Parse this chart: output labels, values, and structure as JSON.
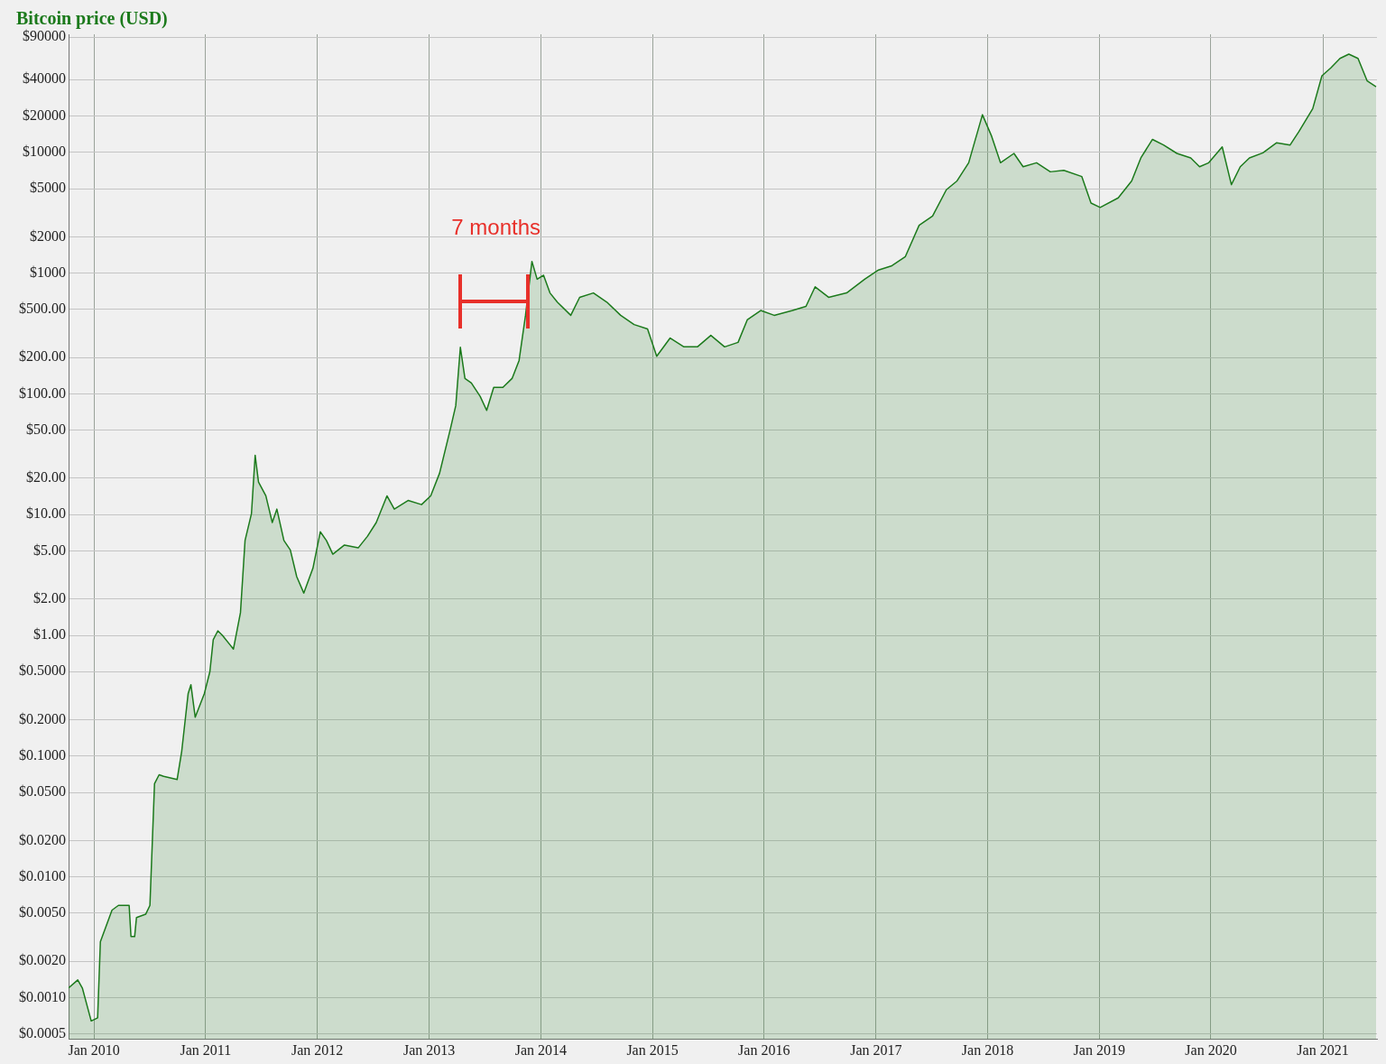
{
  "chart_data": {
    "type": "area",
    "title": "Bitcoin price (USD)",
    "log": "y",
    "grid": true,
    "legend": false,
    "marker": "none",
    "line_style": "solid",
    "xlim": [
      "2009-10-10",
      "2021-06-27"
    ],
    "xticks": [
      {
        "value": "2010-01-01",
        "label": "Jan 2010"
      },
      {
        "value": "2011-01-01",
        "label": "Jan 2011"
      },
      {
        "value": "2012-01-01",
        "label": "Jan 2012"
      },
      {
        "value": "2013-01-01",
        "label": "Jan 2013"
      },
      {
        "value": "2014-01-01",
        "label": "Jan 2014"
      },
      {
        "value": "2015-01-01",
        "label": "Jan 2015"
      },
      {
        "value": "2016-01-01",
        "label": "Jan 2016"
      },
      {
        "value": "2017-01-01",
        "label": "Jan 2017"
      },
      {
        "value": "2018-01-01",
        "label": "Jan 2018"
      },
      {
        "value": "2019-01-01",
        "label": "Jan 2019"
      },
      {
        "value": "2020-01-01",
        "label": "Jan 2020"
      },
      {
        "value": "2021-01-01",
        "label": "Jan 2021"
      }
    ],
    "ylim": [
      0.00045,
      95000
    ],
    "yticks": [
      {
        "value": 90000,
        "label": "$90000"
      },
      {
        "value": 40000,
        "label": "$40000"
      },
      {
        "value": 20000,
        "label": "$20000"
      },
      {
        "value": 10000,
        "label": "$10000"
      },
      {
        "value": 5000,
        "label": "$5000"
      },
      {
        "value": 2000,
        "label": "$2000"
      },
      {
        "value": 1000,
        "label": "$1000"
      },
      {
        "value": 500,
        "label": "$500.00"
      },
      {
        "value": 200,
        "label": "$200.00"
      },
      {
        "value": 100,
        "label": "$100.00"
      },
      {
        "value": 50,
        "label": "$50.00"
      },
      {
        "value": 20,
        "label": "$20.00"
      },
      {
        "value": 10,
        "label": "$10.00"
      },
      {
        "value": 5,
        "label": "$5.00"
      },
      {
        "value": 2,
        "label": "$2.00"
      },
      {
        "value": 1,
        "label": "$1.00"
      },
      {
        "value": 0.5,
        "label": "$0.5000"
      },
      {
        "value": 0.2,
        "label": "$0.2000"
      },
      {
        "value": 0.1,
        "label": "$0.1000"
      },
      {
        "value": 0.05,
        "label": "$0.0500"
      },
      {
        "value": 0.02,
        "label": "$0.0200"
      },
      {
        "value": 0.01,
        "label": "$0.0100"
      },
      {
        "value": 0.005,
        "label": "$0.0050"
      },
      {
        "value": 0.002,
        "label": "$0.0020"
      },
      {
        "value": 0.001,
        "label": "$0.0010"
      },
      {
        "value": 0.0005,
        "label": "$0.0005"
      }
    ],
    "annotations": [
      "7 months"
    ],
    "x": [
      "2009-10-10",
      "2009-11-09",
      "2009-11-24",
      "2009-12-23",
      "2010-01-13",
      "2010-01-22",
      "2010-03-01",
      "2010-03-22",
      "2010-04-26",
      "2010-05-02",
      "2010-05-14",
      "2010-05-20",
      "2010-06-19",
      "2010-07-03",
      "2010-07-18",
      "2010-08-02",
      "2010-08-17",
      "2010-09-30",
      "2010-10-15",
      "2010-11-05",
      "2010-11-14",
      "2010-11-28",
      "2010-12-28",
      "2011-01-15",
      "2011-01-26",
      "2011-02-10",
      "2011-02-25",
      "2011-04-02",
      "2011-04-25",
      "2011-05-10",
      "2011-05-31",
      "2011-06-12",
      "2011-06-23",
      "2011-07-17",
      "2011-08-07",
      "2011-08-22",
      "2011-09-14",
      "2011-10-05",
      "2011-10-26",
      "2011-11-18",
      "2011-12-18",
      "2012-01-11",
      "2012-01-31",
      "2012-02-21",
      "2012-03-30",
      "2012-05-14",
      "2012-06-13",
      "2012-07-12",
      "2012-08-16",
      "2012-09-09",
      "2012-10-24",
      "2012-12-07",
      "2013-01-06",
      "2013-02-04",
      "2013-03-12",
      "2013-03-29",
      "2013-04-13",
      "2013-04-28",
      "2013-05-19",
      "2013-06-17",
      "2013-07-08",
      "2013-07-31",
      "2013-08-30",
      "2013-09-29",
      "2013-10-22",
      "2013-11-12",
      "2013-12-03",
      "2013-12-20",
      "2014-01-10",
      "2014-01-31",
      "2014-02-24",
      "2014-04-09",
      "2014-05-08",
      "2014-06-22",
      "2014-08-05",
      "2014-09-19",
      "2014-11-02",
      "2014-12-16",
      "2015-01-15",
      "2015-02-28",
      "2015-04-14",
      "2015-05-28",
      "2015-07-11",
      "2015-08-25",
      "2015-10-08",
      "2015-11-07",
      "2015-12-21",
      "2016-02-03",
      "2016-04-03",
      "2016-05-17",
      "2016-06-16",
      "2016-07-30",
      "2016-09-27",
      "2016-11-25",
      "2017-01-09",
      "2017-02-22",
      "2017-04-07",
      "2017-05-22",
      "2017-07-05",
      "2017-08-19",
      "2017-09-23",
      "2017-10-31",
      "2017-12-15",
      "2018-01-13",
      "2018-02-12",
      "2018-03-28",
      "2018-04-27",
      "2018-06-10",
      "2018-07-25",
      "2018-09-07",
      "2018-11-05",
      "2018-12-05",
      "2019-01-04",
      "2019-03-04",
      "2019-04-17",
      "2019-05-17",
      "2019-06-24",
      "2019-07-30",
      "2019-09-12",
      "2019-10-27",
      "2019-11-25",
      "2019-12-25",
      "2020-02-07",
      "2020-03-08",
      "2020-04-06",
      "2020-05-06",
      "2020-06-19",
      "2020-08-03",
      "2020-09-16",
      "2020-10-15",
      "2020-11-29",
      "2020-12-29",
      "2021-01-27",
      "2021-02-26",
      "2021-03-27",
      "2021-04-26",
      "2021-05-26",
      "2021-06-24"
    ],
    "series": [
      {
        "color": "#1c7a1c",
        "values": [
          0.0012,
          0.0014,
          0.0012,
          0.00064,
          0.00068,
          0.0029,
          0.0053,
          0.0058,
          0.0058,
          0.0032,
          0.0032,
          0.0046,
          0.0049,
          0.0058,
          0.059,
          0.07,
          0.068,
          0.064,
          0.11,
          0.33,
          0.39,
          0.21,
          0.33,
          0.5,
          0.92,
          1.09,
          1.0,
          0.77,
          1.54,
          6.1,
          10.2,
          31,
          18.6,
          14.3,
          8.6,
          11.1,
          6.1,
          5.1,
          3.06,
          2.24,
          3.6,
          7.2,
          6.1,
          4.7,
          5.6,
          5.3,
          6.6,
          8.6,
          14.3,
          11.1,
          13.1,
          12.1,
          14.3,
          22,
          52,
          80,
          243,
          134,
          123,
          95,
          73,
          113,
          113,
          134,
          189,
          447,
          1250,
          890,
          960,
          685,
          575,
          447,
          630,
          685,
          575,
          447,
          375,
          345,
          205,
          290,
          245,
          245,
          305,
          245,
          267,
          410,
          490,
          447,
          490,
          530,
          770,
          630,
          685,
          890,
          1060,
          1150,
          1370,
          2490,
          2970,
          4900,
          5800,
          8200,
          20500,
          13800,
          8200,
          9800,
          7600,
          8200,
          6900,
          7100,
          6300,
          3800,
          3500,
          4200,
          5800,
          9000,
          12800,
          11500,
          9800,
          9000,
          7600,
          8200,
          11100,
          5400,
          7600,
          9000,
          9900,
          12000,
          11500,
          14900,
          23000,
          43000,
          50000,
          60000,
          65000,
          60000,
          39000,
          35000
        ]
      }
    ]
  }
}
